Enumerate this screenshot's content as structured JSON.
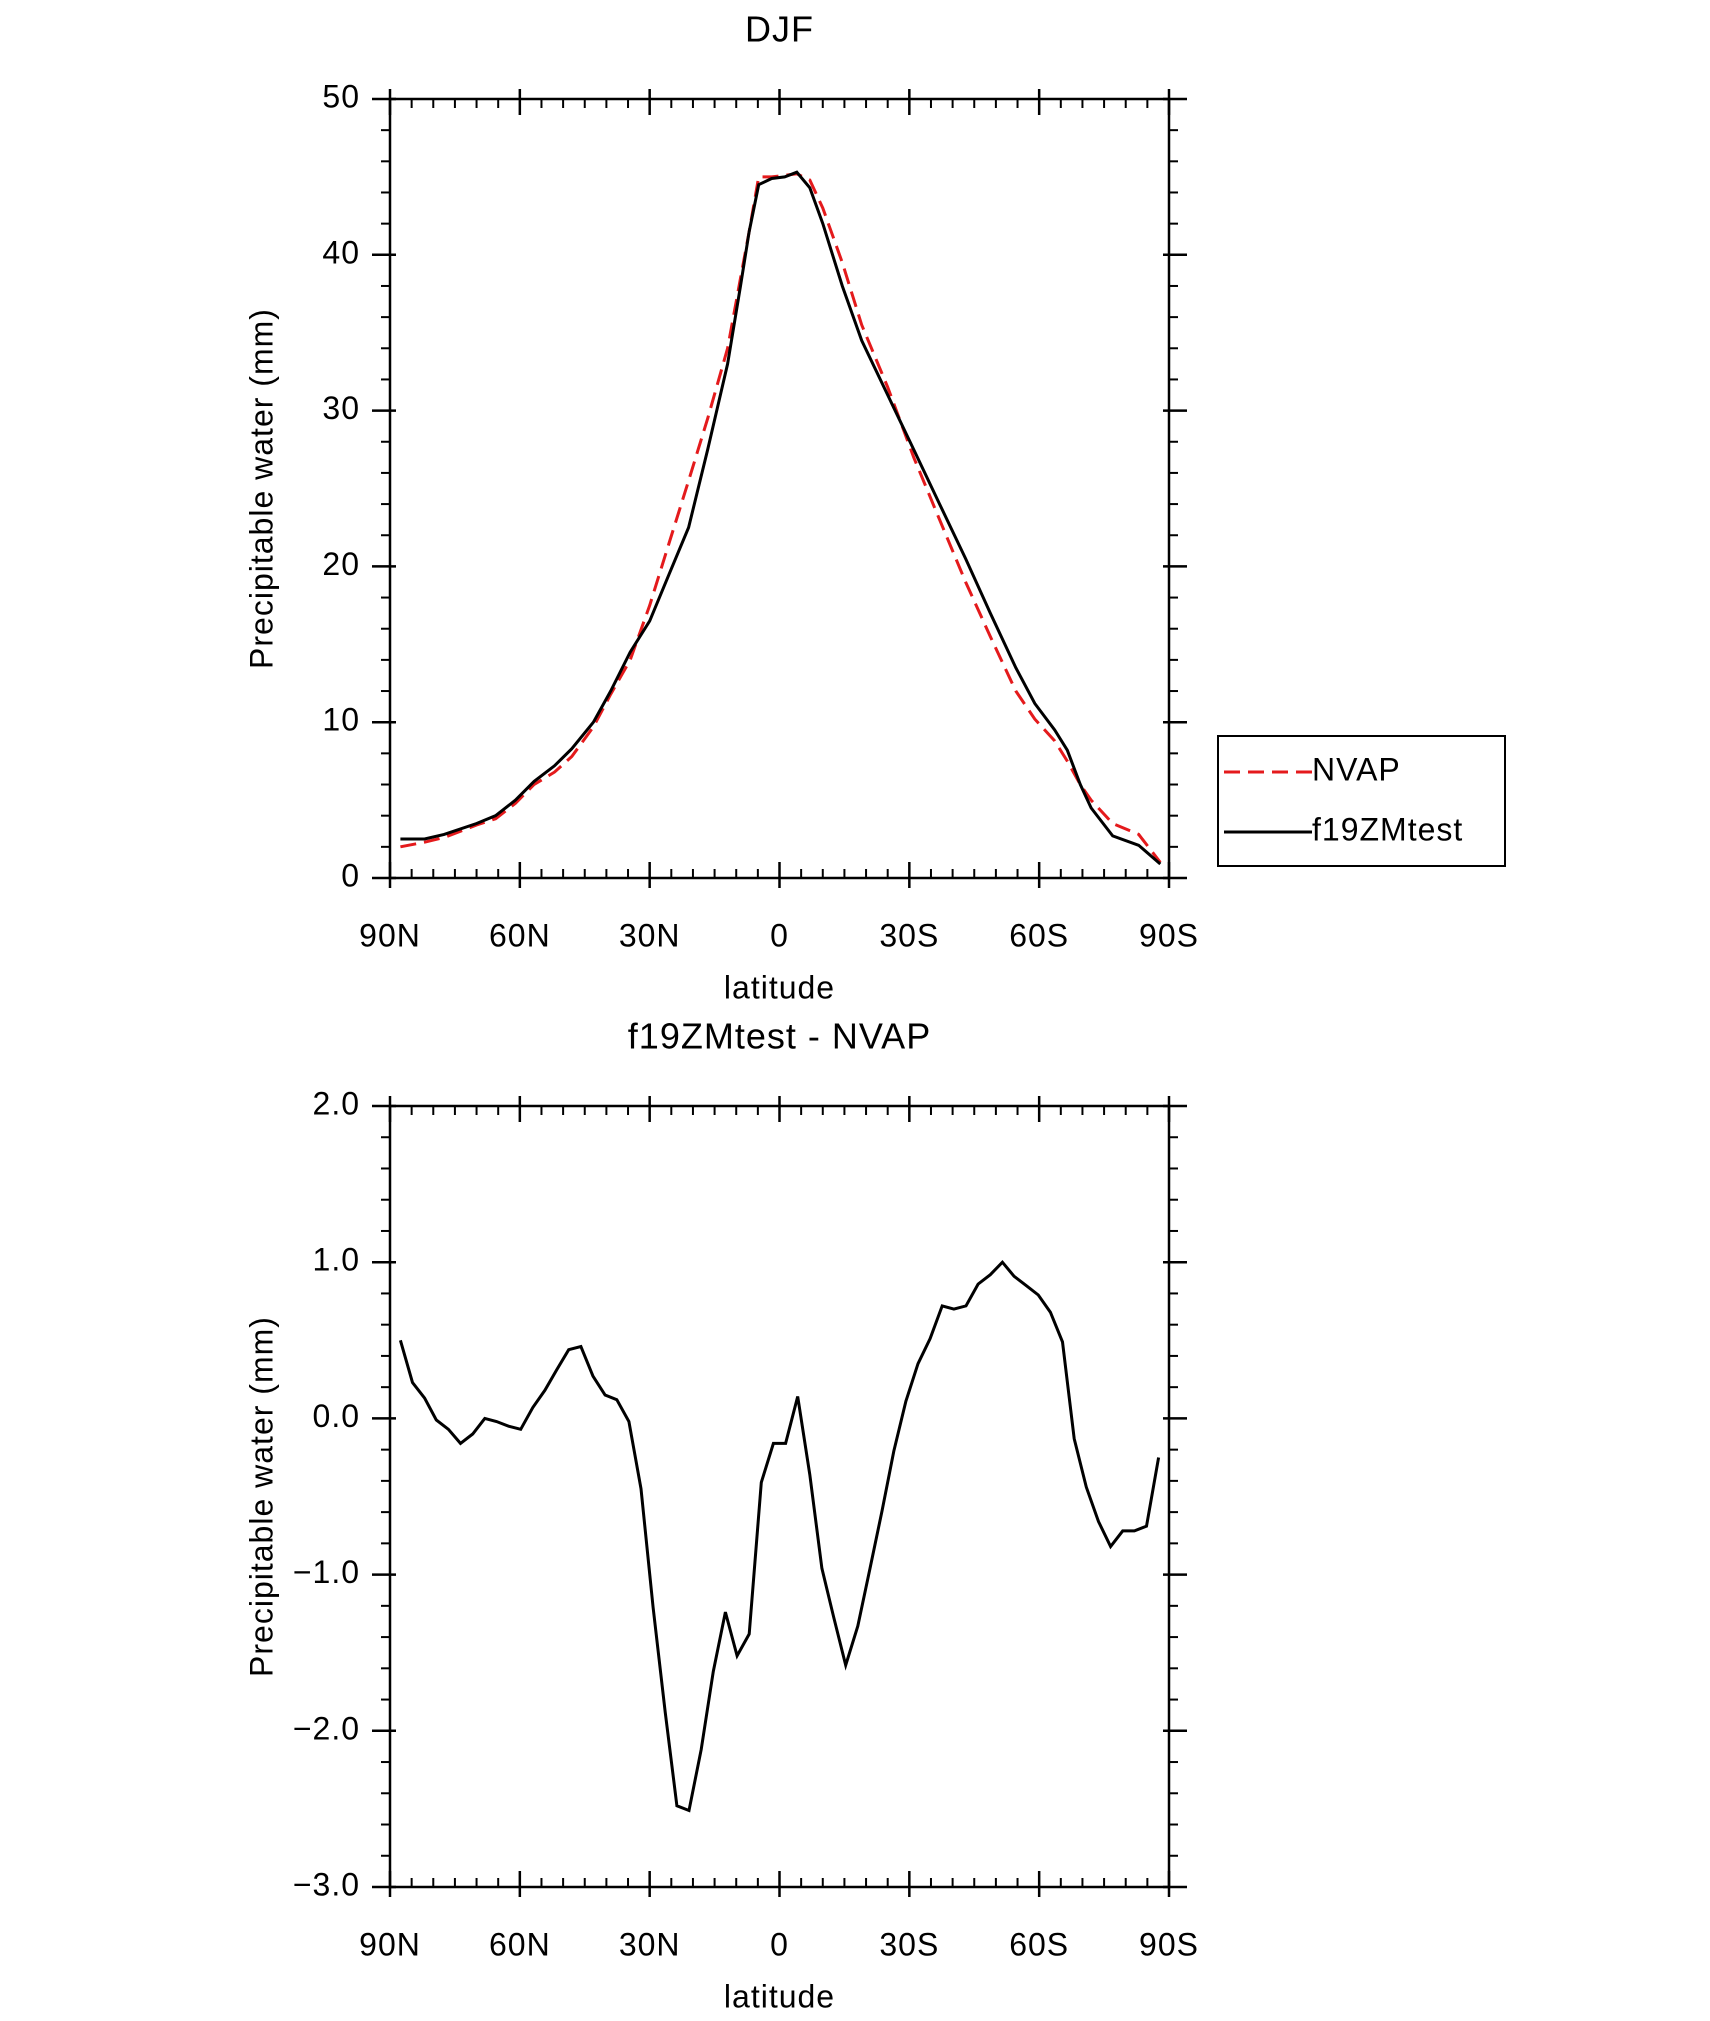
{
  "chart_data": [
    {
      "type": "line",
      "title": "DJF",
      "xlabel": "latitude",
      "ylabel": "Precipitable water (mm)",
      "x": [
        87.6,
        82,
        77.5,
        70,
        65.6,
        61,
        56.7,
        52,
        48,
        43,
        39,
        34.5,
        30,
        25.5,
        21,
        16.6,
        12,
        9,
        7,
        4.8,
        1.8,
        -1.2,
        -4,
        -7,
        -10,
        -14.5,
        -19,
        -25,
        -31,
        -37,
        -43,
        -48.7,
        -54.6,
        -59,
        -63.6,
        -66.5,
        -69.5,
        -72,
        -77,
        -83,
        -88
      ],
      "series": [
        {
          "name": "NVAP",
          "color": "#e41a1c",
          "dash": true,
          "values": [
            2.0,
            2.3,
            2.6,
            3.4,
            3.8,
            4.8,
            6.0,
            6.8,
            7.8,
            9.7,
            11.8,
            14.0,
            17.5,
            21.5,
            25.5,
            29.5,
            34.0,
            38.5,
            41.5,
            45.0,
            45.0,
            45.1,
            45.2,
            44.8,
            43.0,
            39.5,
            35.5,
            31.5,
            27.0,
            23.0,
            19.0,
            15.5,
            12.0,
            10.2,
            8.8,
            7.5,
            6.0,
            5.0,
            3.5,
            2.8,
            1.0
          ]
        },
        {
          "name": "f19ZMtest",
          "color": "#000000",
          "dash": false,
          "values": [
            2.5,
            2.5,
            2.8,
            3.5,
            4.0,
            5.0,
            6.2,
            7.2,
            8.3,
            10.0,
            12.0,
            14.5,
            16.5,
            19.5,
            22.5,
            27.5,
            33.0,
            38.0,
            41.5,
            44.5,
            44.9,
            45.0,
            45.3,
            44.3,
            42.0,
            38.0,
            34.5,
            31.0,
            27.5,
            24.0,
            20.5,
            17.0,
            13.5,
            11.2,
            9.5,
            8.2,
            6.0,
            4.5,
            2.7,
            2.1,
            0.9
          ]
        }
      ],
      "xlim": [
        90,
        -90
      ],
      "xticks": [
        {
          "value": 90,
          "label": "90N"
        },
        {
          "value": 60,
          "label": "60N"
        },
        {
          "value": 30,
          "label": "30N"
        },
        0,
        {
          "value": -30,
          "label": "30S"
        },
        {
          "value": -60,
          "label": "60S"
        },
        {
          "value": -90,
          "label": "90S"
        }
      ],
      "ylim": [
        0,
        50
      ],
      "yticks": [
        0,
        10,
        20,
        30,
        40,
        50
      ],
      "legend": "right"
    },
    {
      "type": "line",
      "title": "f19ZMtest - NVAP",
      "xlabel": "latitude",
      "ylabel": "Precipitable water (mm)",
      "x": [
        87.6,
        84.8,
        82.0,
        79.3,
        76.5,
        73.7,
        70.9,
        68.1,
        65.4,
        62.6,
        59.8,
        57.0,
        54.2,
        51.5,
        48.7,
        45.9,
        43.1,
        40.3,
        37.6,
        34.8,
        32.0,
        29.2,
        26.4,
        23.7,
        20.9,
        18.1,
        15.3,
        12.5,
        9.8,
        7.0,
        4.2,
        1.4,
        -1.4,
        -4.2,
        -7.0,
        -9.8,
        -12.5,
        -15.3,
        -18.1,
        -20.9,
        -23.7,
        -26.4,
        -29.2,
        -32.0,
        -34.8,
        -37.6,
        -40.3,
        -43.1,
        -45.9,
        -48.7,
        -51.5,
        -54.2,
        -57.0,
        -59.8,
        -62.6,
        -65.4,
        -68.1,
        -70.9,
        -73.7,
        -76.5,
        -79.3,
        -82.0,
        -84.8,
        -87.6
      ],
      "series": [
        {
          "name": "f19ZMtest - NVAP",
          "color": "#000000",
          "dash": false,
          "values": [
            0.5,
            0.23,
            0.13,
            -0.01,
            -0.07,
            -0.16,
            -0.1,
            0.0,
            -0.02,
            -0.05,
            -0.07,
            0.07,
            0.18,
            0.31,
            0.44,
            0.46,
            0.27,
            0.15,
            0.12,
            -0.02,
            -0.45,
            -1.21,
            -1.88,
            -2.48,
            -2.51,
            -2.12,
            -1.62,
            -1.24,
            -1.52,
            -1.38,
            -0.41,
            -0.16,
            -0.16,
            0.14,
            -0.36,
            -0.96,
            -1.27,
            -1.58,
            -1.33,
            -0.96,
            -0.59,
            -0.21,
            0.11,
            0.35,
            0.51,
            0.72,
            0.7,
            0.72,
            0.86,
            0.92,
            1.0,
            0.91,
            0.85,
            0.79,
            0.68,
            0.49,
            -0.13,
            -0.44,
            -0.66,
            -0.82,
            -0.72,
            -0.72,
            -0.69,
            -0.25
          ]
        }
      ],
      "xlim": [
        90,
        -90
      ],
      "xticks": [
        {
          "value": 90,
          "label": "90N"
        },
        {
          "value": 60,
          "label": "60N"
        },
        {
          "value": 30,
          "label": "30N"
        },
        0,
        {
          "value": -30,
          "label": "30S"
        },
        {
          "value": -60,
          "label": "60S"
        },
        {
          "value": -90,
          "label": "90S"
        }
      ],
      "ylim": [
        -3,
        2
      ],
      "yticks": [
        {
          "value": -3,
          "label": "−3.0"
        },
        {
          "value": -2,
          "label": "−2.0"
        },
        {
          "value": -1,
          "label": "−1.0"
        },
        {
          "value": 0,
          "label": "0.0"
        },
        {
          "value": 1,
          "label": "1.0"
        },
        {
          "value": 2,
          "label": "2.0"
        }
      ]
    }
  ]
}
